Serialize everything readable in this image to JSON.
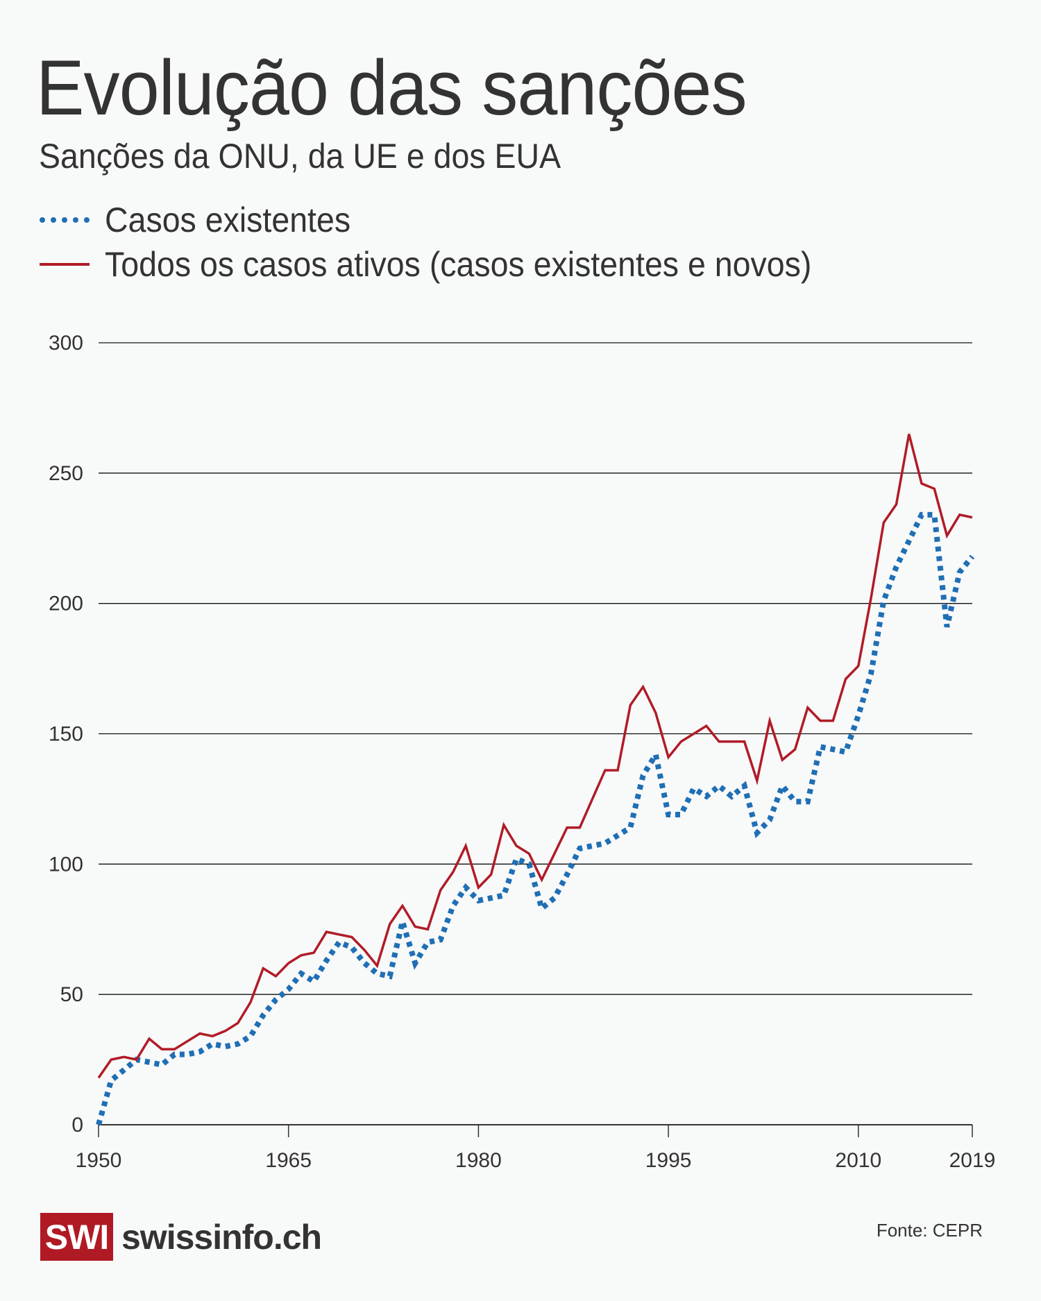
{
  "header": {
    "title": "Evolução das sanções",
    "subtitle": "Sanções da ONU, da UE e dos EUA"
  },
  "legend": [
    {
      "label": "Casos existentes",
      "color": "#1f6fb5",
      "style": "dotted"
    },
    {
      "label": "Todos os casos ativos (casos existentes e novos)",
      "color": "#b01c27",
      "style": "solid"
    }
  ],
  "footer": {
    "logo_mark": "SWI",
    "logo_text": "swissinfo.ch",
    "source": "Fonte: CEPR"
  },
  "chart_data": {
    "type": "line",
    "title": "Evolução das sanções",
    "subtitle": "Sanções da ONU, da UE e dos EUA",
    "xlabel": "",
    "ylabel": "",
    "xlim": [
      1950,
      2019
    ],
    "ylim": [
      0,
      300
    ],
    "grid": true,
    "legend_position": "top-left",
    "x_ticks": [
      1950,
      1965,
      1980,
      1995,
      2010,
      2019
    ],
    "y_ticks": [
      0,
      50,
      100,
      150,
      200,
      250,
      300
    ],
    "x": [
      1950,
      1951,
      1952,
      1953,
      1954,
      1955,
      1956,
      1957,
      1958,
      1959,
      1960,
      1961,
      1962,
      1963,
      1964,
      1965,
      1966,
      1967,
      1968,
      1969,
      1970,
      1971,
      1972,
      1973,
      1974,
      1975,
      1976,
      1977,
      1978,
      1979,
      1980,
      1981,
      1982,
      1983,
      1984,
      1985,
      1986,
      1987,
      1988,
      1989,
      1990,
      1991,
      1992,
      1993,
      1994,
      1995,
      1996,
      1997,
      1998,
      1999,
      2000,
      2001,
      2002,
      2003,
      2004,
      2005,
      2006,
      2007,
      2008,
      2009,
      2010,
      2011,
      2012,
      2013,
      2014,
      2015,
      2016,
      2017,
      2018,
      2019
    ],
    "series": [
      {
        "name": "Casos existentes",
        "color": "#1f6fb5",
        "style": "dotted",
        "values": [
          0,
          17,
          21,
          25,
          24,
          23,
          27,
          27,
          28,
          31,
          30,
          31,
          34,
          42,
          48,
          52,
          58,
          55,
          63,
          70,
          68,
          62,
          58,
          57,
          78,
          62,
          70,
          71,
          84,
          91,
          86,
          87,
          88,
          102,
          100,
          83,
          87,
          96,
          106,
          107,
          108,
          111,
          114,
          134,
          142,
          119,
          119,
          129,
          126,
          130,
          126,
          130,
          112,
          117,
          130,
          124,
          124,
          145,
          144,
          143,
          157,
          173,
          201,
          214,
          224,
          234,
          234,
          191,
          212,
          218
        ]
      },
      {
        "name": "Todos os casos ativos (casos existentes e novos)",
        "color": "#b01c27",
        "style": "solid",
        "values": [
          18,
          25,
          26,
          25,
          33,
          29,
          29,
          32,
          35,
          34,
          36,
          39,
          47,
          60,
          57,
          62,
          65,
          66,
          74,
          73,
          72,
          67,
          61,
          77,
          84,
          76,
          75,
          90,
          97,
          107,
          91,
          96,
          115,
          107,
          104,
          94,
          104,
          114,
          114,
          125,
          136,
          136,
          161,
          168,
          158,
          141,
          147,
          150,
          153,
          147,
          147,
          147,
          132,
          155,
          140,
          144,
          160,
          155,
          155,
          171,
          176,
          202,
          231,
          238,
          265,
          246,
          244,
          226,
          234,
          233
        ]
      }
    ]
  }
}
